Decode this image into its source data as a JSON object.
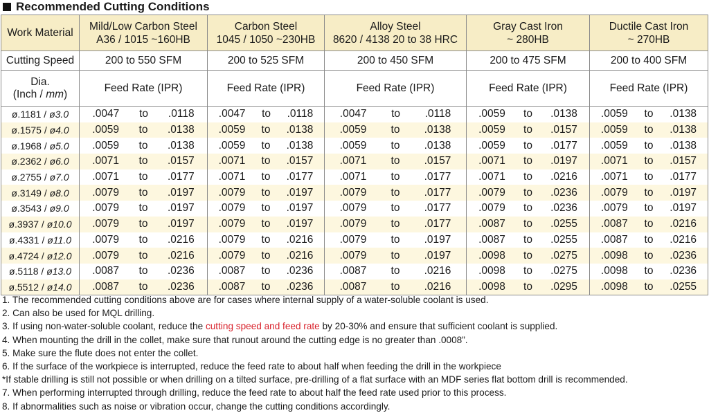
{
  "title": "Recommended Cutting Conditions",
  "header": {
    "work_material": "Work Material",
    "materials": [
      {
        "line1": "Mild/Low Carbon Steel",
        "line2": "A36 / 1015 ~160HB"
      },
      {
        "line1": "Carbon Steel",
        "line2": "1045 / 1050 ~230HB"
      },
      {
        "line1": "Alloy Steel",
        "line2": "8620 / 4138 20 to 38 HRC"
      },
      {
        "line1": "Gray Cast Iron",
        "line2": "~ 280HB"
      },
      {
        "line1": "Ductile Cast Iron",
        "line2": "~ 270HB"
      }
    ]
  },
  "speed": {
    "label": "Cutting Speed",
    "values": [
      "200 to 550 SFM",
      "200 to 525 SFM",
      "200 to 450 SFM",
      "200 to 475 SFM",
      "200 to 400 SFM"
    ]
  },
  "sub": {
    "dia_line1": "Dia.",
    "dia_line2_a": "(Inch / ",
    "dia_line2_b": "mm",
    "dia_line2_c": ")",
    "feed_label": "Feed Rate (IPR)"
  },
  "to": "to",
  "rows": [
    {
      "inch": "ø.1181 / ",
      "mm": "ø3.0",
      "f": [
        [
          ".0047",
          ".0118"
        ],
        [
          ".0047",
          ".0118"
        ],
        [
          ".0047",
          ".0118"
        ],
        [
          ".0059",
          ".0138"
        ],
        [
          ".0059",
          ".0138"
        ]
      ]
    },
    {
      "inch": "ø.1575 / ",
      "mm": "ø4.0",
      "f": [
        [
          ".0059",
          ".0138"
        ],
        [
          ".0059",
          ".0138"
        ],
        [
          ".0059",
          ".0138"
        ],
        [
          ".0059",
          ".0157"
        ],
        [
          ".0059",
          ".0138"
        ]
      ]
    },
    {
      "inch": "ø.1968 / ",
      "mm": "ø5.0",
      "f": [
        [
          ".0059",
          ".0138"
        ],
        [
          ".0059",
          ".0138"
        ],
        [
          ".0059",
          ".0138"
        ],
        [
          ".0059",
          ".0177"
        ],
        [
          ".0059",
          ".0138"
        ]
      ]
    },
    {
      "inch": "ø.2362 / ",
      "mm": "ø6.0",
      "f": [
        [
          ".0071",
          ".0157"
        ],
        [
          ".0071",
          ".0157"
        ],
        [
          ".0071",
          ".0157"
        ],
        [
          ".0071",
          ".0197"
        ],
        [
          ".0071",
          ".0157"
        ]
      ]
    },
    {
      "inch": "ø.2755 / ",
      "mm": "ø7.0",
      "f": [
        [
          ".0071",
          ".0177"
        ],
        [
          ".0071",
          ".0177"
        ],
        [
          ".0071",
          ".0177"
        ],
        [
          ".0071",
          ".0216"
        ],
        [
          ".0071",
          ".0177"
        ]
      ]
    },
    {
      "inch": "ø.3149 / ",
      "mm": "ø8.0",
      "f": [
        [
          ".0079",
          ".0197"
        ],
        [
          ".0079",
          ".0197"
        ],
        [
          ".0079",
          ".0177"
        ],
        [
          ".0079",
          ".0236"
        ],
        [
          ".0079",
          ".0197"
        ]
      ]
    },
    {
      "inch": "ø.3543 / ",
      "mm": "ø9.0",
      "f": [
        [
          ".0079",
          ".0197"
        ],
        [
          ".0079",
          ".0197"
        ],
        [
          ".0079",
          ".0177"
        ],
        [
          ".0079",
          ".0236"
        ],
        [
          ".0079",
          ".0197"
        ]
      ]
    },
    {
      "inch": "ø.3937 / ",
      "mm": "ø10.0",
      "f": [
        [
          ".0079",
          ".0197"
        ],
        [
          ".0079",
          ".0197"
        ],
        [
          ".0079",
          ".0177"
        ],
        [
          ".0087",
          ".0255"
        ],
        [
          ".0087",
          ".0216"
        ]
      ]
    },
    {
      "inch": "ø.4331 / ",
      "mm": "ø11.0",
      "f": [
        [
          ".0079",
          ".0216"
        ],
        [
          ".0079",
          ".0216"
        ],
        [
          ".0079",
          ".0197"
        ],
        [
          ".0087",
          ".0255"
        ],
        [
          ".0087",
          ".0216"
        ]
      ]
    },
    {
      "inch": "ø.4724 / ",
      "mm": "ø12.0",
      "f": [
        [
          ".0079",
          ".0216"
        ],
        [
          ".0079",
          ".0216"
        ],
        [
          ".0079",
          ".0197"
        ],
        [
          ".0098",
          ".0275"
        ],
        [
          ".0098",
          ".0236"
        ]
      ]
    },
    {
      "inch": "ø.5118 / ",
      "mm": "ø13.0",
      "f": [
        [
          ".0087",
          ".0236"
        ],
        [
          ".0087",
          ".0236"
        ],
        [
          ".0087",
          ".0216"
        ],
        [
          ".0098",
          ".0275"
        ],
        [
          ".0098",
          ".0236"
        ]
      ]
    },
    {
      "inch": "ø.5512 / ",
      "mm": "ø14.0",
      "f": [
        [
          ".0087",
          ".0236"
        ],
        [
          ".0087",
          ".0236"
        ],
        [
          ".0087",
          ".0216"
        ],
        [
          ".0098",
          ".0295"
        ],
        [
          ".0098",
          ".0255"
        ]
      ]
    }
  ],
  "notes": {
    "n1": "1. The recommended cutting conditions above are for cases where internal supply of a water-soluble coolant is used.",
    "n2": "2. Can also be used for MQL drilling.",
    "n3_a": "3. If using non-water-soluble coolant, reduce the ",
    "n3_red": "cutting speed and feed rate",
    "n3_b": " by 20-30% and ensure that sufficient coolant is supplied.",
    "n4": "4. When mounting the drill in the collet, make sure that runout around the cutting edge is no greater than .0008”.",
    "n5": "5. Make sure the flute does not enter the collet.",
    "n6": "6. If the surface of the workpiece is interrupted, reduce the feed rate to about half when feeding the drill in the workpiece",
    "n6b": "*If stable drilling is still not possible or when drilling on a tilted surface, pre-drilling of a flat surface with an MDF series flat bottom drill is recommended.",
    "n7": "7. When performing interrupted through drilling, reduce the feed rate to about half the feed rate used prior to this process.",
    "n8": "8. If abnormalities such as noise or vibration occur, change the cutting conditions accordingly."
  },
  "colors": {
    "header_bg": "#f7edc6",
    "stripe_bg": "#fdf7df",
    "accent_red": "#d8202a"
  }
}
